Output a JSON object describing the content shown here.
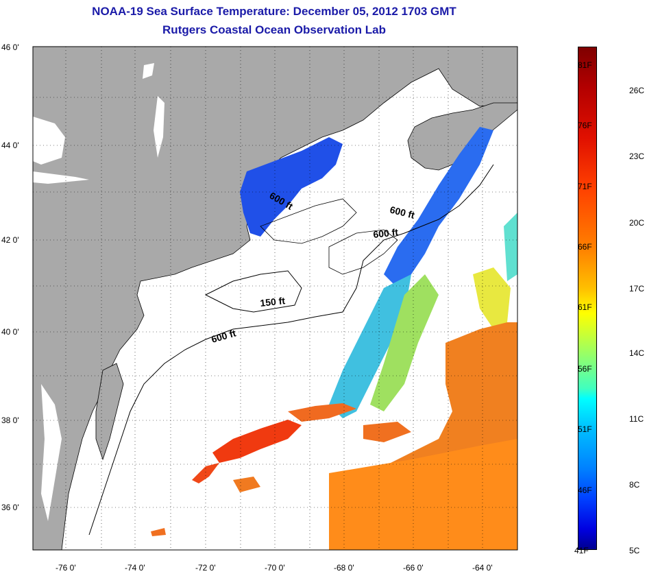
{
  "header": {
    "title": "NOAA-19 Sea Surface Temperature:  December 05, 2012 1703 GMT",
    "subtitle": "Rutgers Coastal Ocean Observation Lab"
  },
  "map": {
    "lon_range": [
      -77,
      -63
    ],
    "lat_range": [
      35,
      46
    ],
    "lon_ticks": [
      "-76 0'",
      "-74 0'",
      "-72 0'",
      "-70 0'",
      "-68 0'",
      "-66 0'",
      "-64 0'"
    ],
    "lat_ticks": [
      "46 0'",
      "44 0'",
      "42 0'",
      "40 0'",
      "38 0'",
      "36 0'"
    ],
    "grid": "dotted",
    "land_color": "#a9a9a9",
    "contour_labels": [
      "600 ft",
      "600 ft",
      "600 ft",
      "150 ft",
      "600 ft"
    ]
  },
  "colorbar": {
    "fahrenheit": [
      "81F",
      "76F",
      "71F",
      "66F",
      "61F",
      "56F",
      "51F",
      "46F",
      "41F"
    ],
    "celsius": [
      "26C",
      "23C",
      "20C",
      "17C",
      "14C",
      "11C",
      "8C",
      "5C"
    ],
    "range_c": [
      5,
      27
    ]
  }
}
